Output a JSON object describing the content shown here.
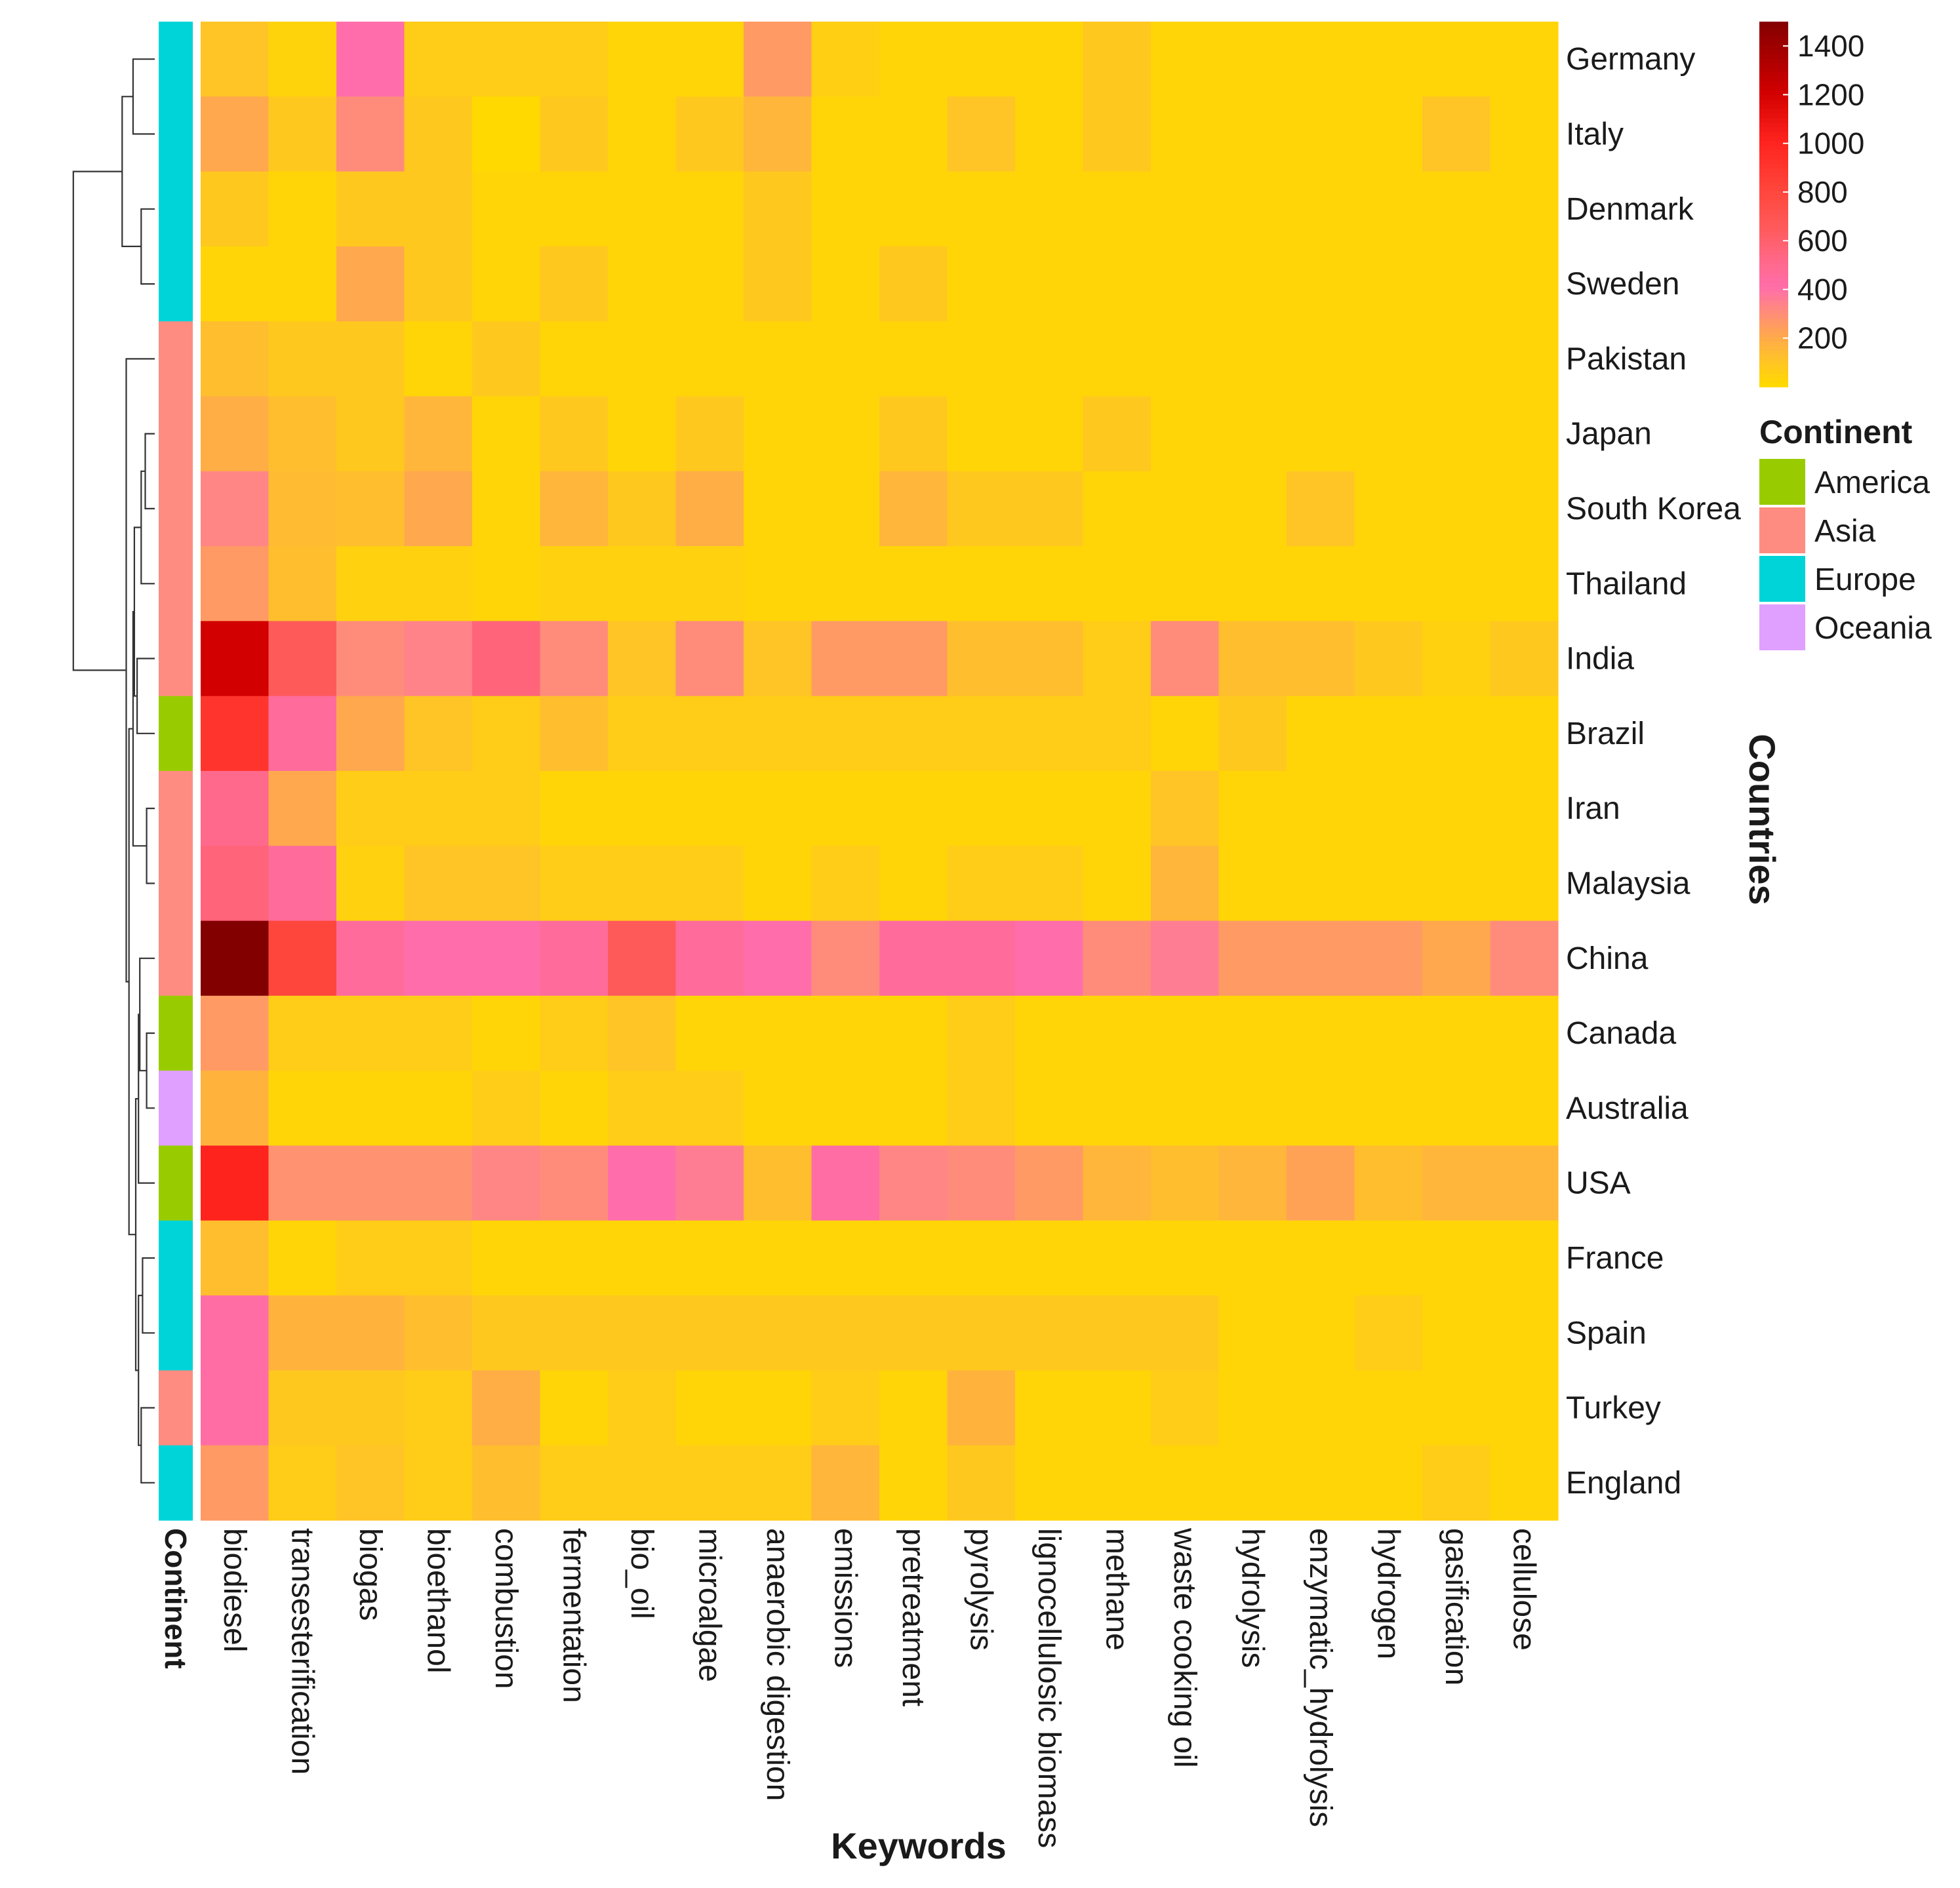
{
  "chart_data": {
    "type": "heatmap",
    "title": "",
    "xlabel": "Keywords",
    "ylabel": "Countries",
    "annotation_label": "Continent",
    "columns": [
      "biodiesel",
      "transesterification",
      "biogas",
      "bioethanol",
      "combustion",
      "fermentation",
      "bio_oil",
      "microalgae",
      "anaerobic digestion",
      "emissions",
      "pretreatment",
      "pyrolysis",
      "lignocellulosic biomass",
      "methane",
      "waste cooking oil",
      "hydrolysis",
      "enzymatic_hydrolysis",
      "hydrogen",
      "gasification",
      "cellulose"
    ],
    "rows": [
      "Germany",
      "Italy",
      "Denmark",
      "Sweden",
      "Pakistan",
      "Japan",
      "South Korea",
      "Thailand",
      "India",
      "Brazil",
      "Iran",
      "Malaysia",
      "China",
      "Canada",
      "Australia",
      "USA",
      "France",
      "Spain",
      "Turkey",
      "England"
    ],
    "row_continent": [
      "Europe",
      "Europe",
      "Europe",
      "Europe",
      "Asia",
      "Asia",
      "Asia",
      "Asia",
      "Asia",
      "America",
      "Asia",
      "Asia",
      "Asia",
      "America",
      "Oceania",
      "America",
      "Europe",
      "Europe",
      "Asia",
      "Europe"
    ],
    "values": [
      [
        100,
        30,
        400,
        60,
        60,
        60,
        20,
        20,
        250,
        50,
        20,
        20,
        20,
        80,
        20,
        20,
        20,
        20,
        20,
        20
      ],
      [
        200,
        80,
        300,
        80,
        0,
        80,
        20,
        80,
        150,
        20,
        20,
        100,
        20,
        80,
        20,
        20,
        20,
        20,
        100,
        20
      ],
      [
        80,
        20,
        80,
        80,
        20,
        20,
        20,
        20,
        80,
        20,
        20,
        20,
        20,
        20,
        20,
        20,
        20,
        20,
        20,
        20
      ],
      [
        20,
        20,
        200,
        80,
        20,
        80,
        20,
        20,
        80,
        20,
        80,
        20,
        20,
        20,
        20,
        20,
        20,
        20,
        20,
        20
      ],
      [
        120,
        80,
        80,
        20,
        80,
        20,
        20,
        20,
        20,
        20,
        20,
        20,
        20,
        20,
        20,
        20,
        20,
        20,
        20,
        20
      ],
      [
        180,
        120,
        80,
        150,
        20,
        80,
        20,
        80,
        20,
        20,
        80,
        20,
        20,
        80,
        20,
        20,
        20,
        20,
        20,
        20
      ],
      [
        320,
        130,
        120,
        200,
        20,
        150,
        80,
        180,
        20,
        20,
        150,
        80,
        80,
        20,
        20,
        20,
        100,
        20,
        20,
        20
      ],
      [
        250,
        120,
        40,
        40,
        20,
        40,
        40,
        40,
        20,
        20,
        20,
        20,
        20,
        20,
        20,
        20,
        20,
        20,
        20,
        20
      ],
      [
        1200,
        650,
        300,
        330,
        550,
        300,
        100,
        300,
        100,
        250,
        250,
        120,
        120,
        60,
        300,
        120,
        120,
        80,
        40,
        80
      ],
      [
        900,
        450,
        200,
        100,
        60,
        120,
        60,
        60,
        60,
        60,
        60,
        60,
        60,
        60,
        20,
        80,
        20,
        20,
        20,
        20
      ],
      [
        500,
        200,
        60,
        60,
        60,
        20,
        20,
        20,
        20,
        20,
        20,
        20,
        20,
        20,
        100,
        20,
        20,
        20,
        20,
        20
      ],
      [
        550,
        450,
        40,
        100,
        100,
        60,
        60,
        60,
        20,
        60,
        20,
        60,
        60,
        20,
        150,
        20,
        20,
        20,
        20,
        20
      ],
      [
        1500,
        800,
        450,
        400,
        400,
        450,
        650,
        450,
        400,
        300,
        450,
        450,
        400,
        300,
        350,
        250,
        250,
        250,
        200,
        300
      ],
      [
        250,
        60,
        60,
        60,
        20,
        60,
        100,
        20,
        20,
        20,
        20,
        60,
        20,
        20,
        20,
        20,
        20,
        20,
        20,
        20
      ],
      [
        160,
        20,
        20,
        20,
        60,
        20,
        60,
        60,
        20,
        20,
        20,
        60,
        20,
        20,
        20,
        20,
        20,
        20,
        20,
        20
      ],
      [
        1000,
        280,
        280,
        280,
        320,
        300,
        400,
        350,
        120,
        420,
        320,
        300,
        250,
        150,
        120,
        150,
        220,
        120,
        150,
        150
      ],
      [
        120,
        20,
        60,
        60,
        20,
        20,
        20,
        20,
        20,
        20,
        20,
        20,
        20,
        20,
        20,
        20,
        20,
        20,
        20,
        20
      ],
      [
        420,
        160,
        160,
        120,
        80,
        80,
        80,
        80,
        80,
        80,
        80,
        80,
        80,
        80,
        80,
        20,
        20,
        60,
        20,
        20
      ],
      [
        420,
        80,
        80,
        60,
        180,
        20,
        60,
        20,
        20,
        60,
        20,
        160,
        20,
        20,
        60,
        20,
        20,
        20,
        20,
        20
      ],
      [
        250,
        60,
        100,
        60,
        120,
        60,
        60,
        60,
        60,
        150,
        20,
        80,
        20,
        20,
        20,
        20,
        20,
        20,
        60,
        20
      ]
    ],
    "color_scale": {
      "min": 0,
      "max": 1500,
      "ticks": [
        200,
        400,
        600,
        800,
        1000,
        1200,
        1400
      ]
    },
    "legend_title": "Continent",
    "legend_entries": [
      "America",
      "Asia",
      "Europe",
      "Oceania"
    ],
    "continent_colors": {
      "America": "#99cc00",
      "Asia": "#ff8c80",
      "Europe": "#00d4d8",
      "Oceania": "#e0a0ff"
    },
    "dendrogram": "hierarchical row clustering"
  }
}
